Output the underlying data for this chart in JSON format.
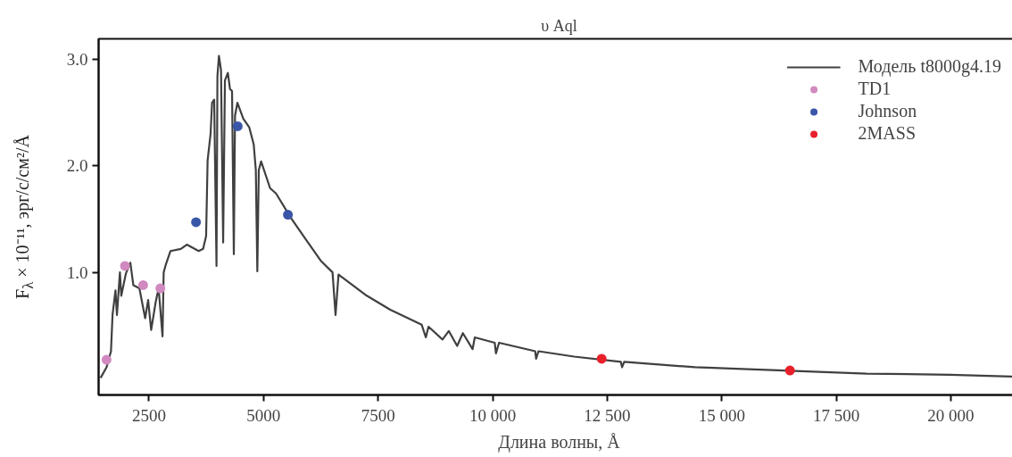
{
  "chart_data": {
    "type": "line",
    "title": "υ Aql",
    "xlabel": "Длина волны, Å",
    "ylabel": "F$_{λ}$ × 10⁻¹¹, эрг/с/см²/Å",
    "xlim": [
      1400,
      21500
    ],
    "ylim": [
      -0.15,
      3.19
    ],
    "xticks": [
      2500,
      5000,
      7500,
      {
        "value": 10000,
        "label": "10 000"
      },
      {
        "value": 12500,
        "label": "12 500"
      },
      {
        "value": 15000,
        "label": "15 000"
      },
      {
        "value": 17500,
        "label": "17 500"
      },
      {
        "value": 20000,
        "label": "20 000"
      }
    ],
    "yticks": [
      {
        "value": 1,
        "label": "1.0"
      },
      {
        "value": 2,
        "label": "2.0"
      },
      {
        "value": 3,
        "label": "3.0"
      }
    ],
    "grid": false,
    "legend": "top right",
    "series": [
      {
        "name": "Модель t8000g4.19",
        "color": "#404040",
        "marker": "none",
        "line_style": "solid",
        "x": [
          1443,
          1573,
          1670,
          1704,
          1768,
          1800,
          1865,
          1895,
          1996,
          2093,
          2158,
          2290,
          2416,
          2481,
          2547,
          2645,
          2710,
          2795,
          2820,
          2872,
          2969,
          3195,
          3325,
          3584,
          3681,
          3746,
          3779,
          3844,
          3876,
          3922,
          3973,
          3993,
          4026,
          4071,
          4118,
          4157,
          4221,
          4267,
          4312,
          4351,
          4377,
          4429,
          4559,
          4688,
          4785,
          4831,
          4864,
          4896,
          4947,
          5142,
          5272,
          5597,
          5921,
          6246,
          6505,
          6571,
          6636,
          7220,
          7765,
          8450,
          8541,
          8600,
          8906,
          9042,
          9225,
          9350,
          9562,
          9610,
          10045,
          10072,
          10140,
          10929,
          10948,
          11000,
          11775,
          12797,
          12825,
          12870,
          14421,
          18158,
          19981,
          21500
        ],
        "values": [
          0.01,
          0.11,
          0.26,
          0.6,
          0.83,
          0.6,
          1.0,
          0.78,
          0.99,
          1.09,
          0.88,
          0.85,
          0.57,
          0.74,
          0.46,
          0.72,
          0.85,
          0.4,
          1.0,
          1.08,
          1.2,
          1.22,
          1.26,
          1.2,
          1.22,
          1.34,
          2.05,
          2.3,
          2.59,
          2.62,
          1.06,
          2.84,
          3.03,
          2.9,
          1.28,
          2.8,
          2.87,
          2.72,
          2.7,
          1.17,
          2.47,
          2.59,
          2.44,
          2.36,
          2.2,
          1.96,
          1.01,
          1.96,
          2.04,
          1.79,
          1.74,
          1.51,
          1.31,
          1.11,
          1.0,
          0.6,
          0.98,
          0.79,
          0.65,
          0.51,
          0.39,
          0.49,
          0.37,
          0.45,
          0.31,
          0.43,
          0.28,
          0.39,
          0.34,
          0.24,
          0.34,
          0.26,
          0.19,
          0.26,
          0.21,
          0.16,
          0.11,
          0.16,
          0.11,
          0.05,
          0.04,
          0.02
        ]
      },
      {
        "name": "TD1",
        "type": "scatter",
        "color": "#d08ac0",
        "marker": "circle",
        "x": [
          1573,
          1976,
          2372,
          2747
        ],
        "values": [
          0.18,
          1.06,
          0.88,
          0.85
        ]
      },
      {
        "name": "Johnson",
        "type": "scatter",
        "color": "#3a56a8",
        "marker": "circle",
        "x": [
          3526,
          4435,
          5532
        ],
        "values": [
          1.47,
          2.37,
          1.54
        ]
      },
      {
        "name": "2MASS",
        "type": "scatter",
        "color": "#e8202a",
        "marker": "circle",
        "x": [
          12379,
          16489
        ],
        "values": [
          0.19,
          0.08
        ]
      }
    ]
  }
}
